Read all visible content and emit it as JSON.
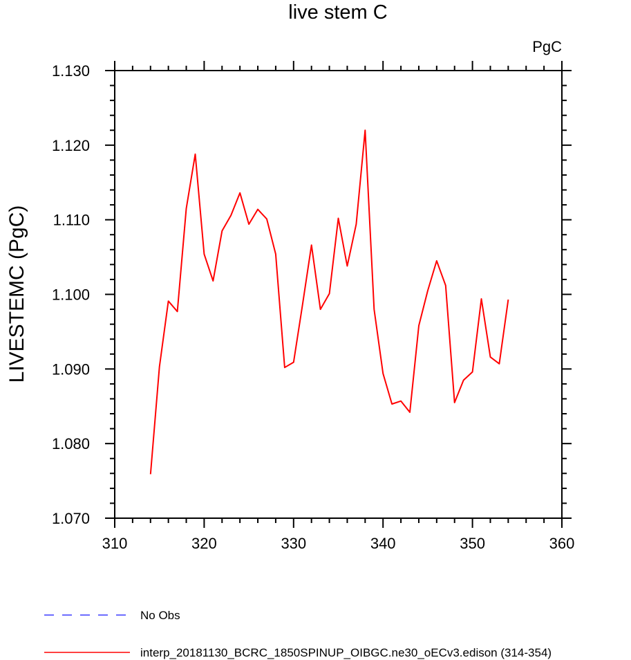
{
  "chart_data": {
    "type": "line",
    "title": "live stem C",
    "units": "PgC",
    "xlabel": "",
    "ylabel": "LIVESTEMC  (PgC)",
    "xlim": [
      310,
      360
    ],
    "ylim": [
      1.07,
      1.13
    ],
    "x_ticks": [
      310,
      320,
      330,
      340,
      350,
      360
    ],
    "x_tick_labels": [
      "310",
      "320",
      "330",
      "340",
      "350",
      "360"
    ],
    "y_ticks": [
      1.07,
      1.08,
      1.09,
      1.1,
      1.11,
      1.12,
      1.13
    ],
    "y_tick_labels": [
      "1.070",
      "1.080",
      "1.090",
      "1.100",
      "1.110",
      "1.120",
      "1.130"
    ],
    "grid": false,
    "legend_position": "bottom",
    "series": [
      {
        "name": "No Obs",
        "color": "#3b3bff",
        "dash": "dashed",
        "x": [],
        "y": []
      },
      {
        "name": "interp_20181130_BCRC_1850SPINUP_OIBGC.ne30_oECv3.edison (314-354)",
        "color": "#ff0000",
        "dash": "solid",
        "x": [
          314,
          315,
          316,
          317,
          318,
          319,
          320,
          321,
          322,
          323,
          324,
          325,
          326,
          327,
          328,
          329,
          330,
          331,
          332,
          333,
          334,
          335,
          336,
          337,
          338,
          339,
          340,
          341,
          342,
          343,
          344,
          345,
          346,
          347,
          348,
          349,
          350,
          351,
          352,
          353,
          354
        ],
        "y": [
          1.0759,
          1.0903,
          1.0991,
          1.0977,
          1.1115,
          1.1188,
          1.1054,
          1.1018,
          1.1085,
          1.1106,
          1.1136,
          1.1094,
          1.1114,
          1.1101,
          1.1054,
          1.0902,
          1.0909,
          1.0986,
          1.1066,
          1.098,
          1.1001,
          1.1102,
          1.1038,
          1.1094,
          1.122,
          1.098,
          1.0894,
          1.0853,
          1.0857,
          1.0842,
          1.0958,
          1.1005,
          1.1045,
          1.1012,
          1.0855,
          1.0885,
          1.0896,
          1.0994,
          1.0916,
          1.0907,
          1.0993
        ]
      }
    ]
  }
}
